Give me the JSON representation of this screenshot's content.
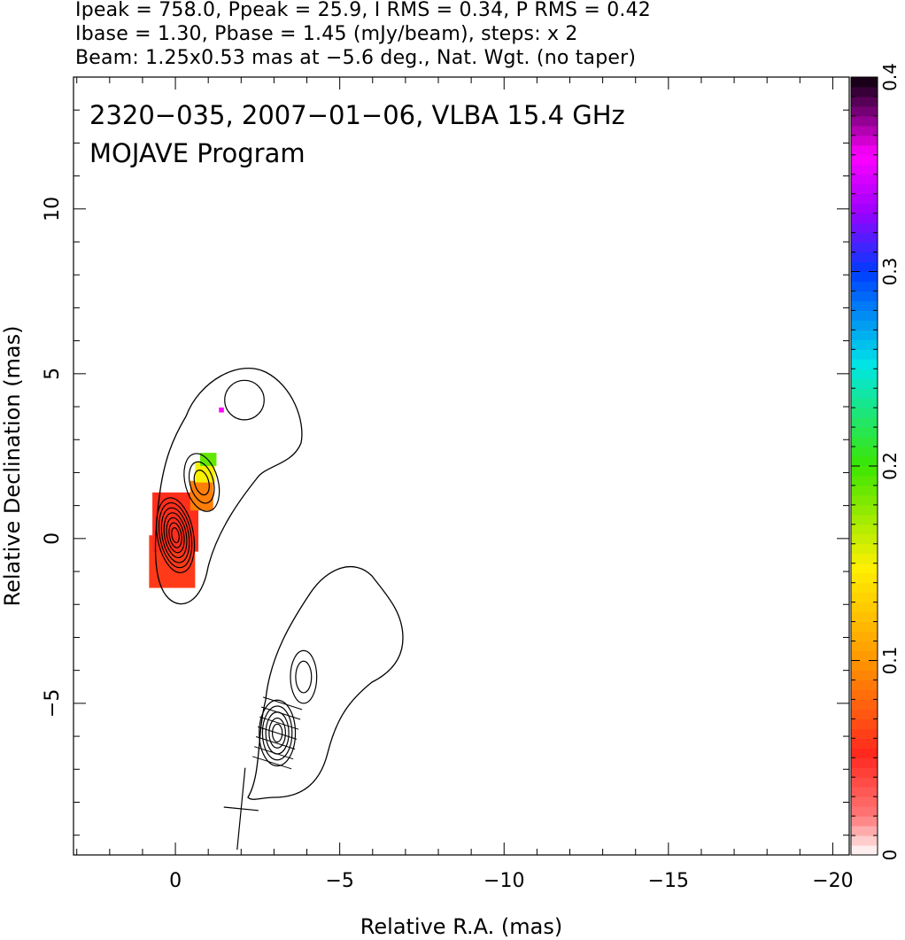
{
  "header": {
    "line1": "Ipeak = 758.0, Ppeak = 25.9, I RMS = 0.34, P RMS = 0.42",
    "line2": "Ibase = 1.30, Pbase = 1.45 (mJy/beam), steps: x 2",
    "line3": "Beam: 1.25x0.53 mas at −5.6 deg., Nat. Wgt. (no taper)"
  },
  "chart_data": {
    "type": "heatmap",
    "title": "2320−035, 2007−01−06, VLBA 15.4 GHz",
    "subtitle": "MOJAVE Program",
    "xlabel": "Relative R.A. (mas)",
    "ylabel": "Relative Declination (mas)",
    "xlim": [
      3.1,
      -20.5
    ],
    "ylim": [
      -9.6,
      14.0
    ],
    "x_ticks": [
      {
        "v": 0,
        "label": "0"
      },
      {
        "v": -5,
        "label": "−5"
      },
      {
        "v": -10,
        "label": "−10"
      },
      {
        "v": -15,
        "label": "−15"
      },
      {
        "v": -20,
        "label": "−20"
      }
    ],
    "y_ticks": [
      {
        "v": -5,
        "label": "−5"
      },
      {
        "v": 0,
        "label": "0"
      },
      {
        "v": 5,
        "label": "5"
      },
      {
        "v": 10,
        "label": "10"
      }
    ],
    "colorbar": {
      "range": [
        0,
        0.4
      ],
      "ticks": [
        {
          "v": 0,
          "label": "0"
        },
        {
          "v": 0.1,
          "label": "0.1"
        },
        {
          "v": 0.2,
          "label": "0.2"
        },
        {
          "v": 0.3,
          "label": "0.3"
        },
        {
          "v": 0.4,
          "label": "0.4"
        }
      ]
    },
    "contour_levels_mjy_per_beam": [
      1.3,
      2.6,
      5.2,
      10.4,
      20.8,
      41.6,
      83.2,
      166.4,
      332.8,
      665.6
    ],
    "features": [
      {
        "name": "core",
        "x": 0.0,
        "y": 0.1,
        "rx": 0.55,
        "ry": 1.15,
        "pa": -10,
        "n": 7
      },
      {
        "name": "inner-jet",
        "x": -0.8,
        "y": 1.7,
        "rx": 0.5,
        "ry": 0.9,
        "pa": -15,
        "n": 3
      },
      {
        "name": "knot-a",
        "x": -2.1,
        "y": 4.2,
        "rx": 0.6,
        "ry": 0.6,
        "pa": 0,
        "n": 1
      },
      {
        "name": "southern-component",
        "x": -3.1,
        "y": -5.9,
        "rx": 0.55,
        "ry": 1.0,
        "pa": 0,
        "n": 5
      },
      {
        "name": "southern-knot",
        "x": -3.9,
        "y": -4.2,
        "rx": 0.4,
        "ry": 0.8,
        "pa": 0,
        "n": 2
      }
    ],
    "polarization_pixels": [
      {
        "x": 0.1,
        "y": -0.7,
        "w": 1.4,
        "h": 1.6,
        "frac": 0.06
      },
      {
        "x": 0.0,
        "y": 0.5,
        "w": 1.4,
        "h": 1.8,
        "frac": 0.055
      },
      {
        "x": -0.8,
        "y": 1.3,
        "w": 0.7,
        "h": 0.9,
        "frac": 0.09
      },
      {
        "x": -0.9,
        "y": 2.0,
        "w": 0.6,
        "h": 0.6,
        "frac": 0.15
      },
      {
        "x": -1.0,
        "y": 2.4,
        "w": 0.5,
        "h": 0.4,
        "frac": 0.19
      },
      {
        "x": -1.4,
        "y": 3.9,
        "w": 0.15,
        "h": 0.15,
        "frac": 0.36
      }
    ],
    "beam": {
      "x": -2.0,
      "y": -8.2,
      "major": 1.25,
      "minor": 0.53,
      "pa": -5.6
    }
  }
}
